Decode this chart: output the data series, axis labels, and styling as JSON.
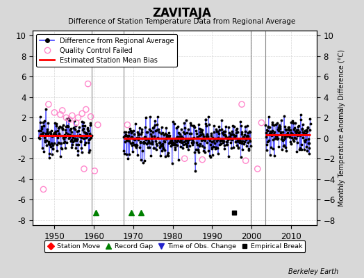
{
  "title": "ZAVITAJA",
  "subtitle": "Difference of Station Temperature Data from Regional Average",
  "ylabel_right": "Monthly Temperature Anomaly Difference (°C)",
  "xlim": [
    1944.5,
    2016.5
  ],
  "ylim": [
    -8.5,
    10.5
  ],
  "yticks": [
    -8,
    -6,
    -4,
    -2,
    0,
    2,
    4,
    6,
    8,
    10
  ],
  "xticks": [
    1950,
    1960,
    1970,
    1980,
    1990,
    2000,
    2010
  ],
  "background_color": "#d8d8d8",
  "plot_bg_color": "#ffffff",
  "grid_color": "#cccccc",
  "segments": [
    {
      "x_start": 1946.0,
      "x_end": 1959.5,
      "bias": 0.25
    },
    {
      "x_start": 1967.5,
      "x_end": 1999.8,
      "bias": -0.05
    },
    {
      "x_start": 2003.5,
      "x_end": 2015.0,
      "bias": 0.35
    }
  ],
  "vertical_lines": [
    1959.5,
    1967.5,
    1999.8,
    2003.5
  ],
  "record_gaps": [
    1960.5,
    1969.5,
    1972.0
  ],
  "empirical_breaks": [
    1995.5
  ],
  "obs_changes": [],
  "station_moves": [],
  "qc_failed_times": [
    1947.2,
    1948.5,
    1950.0,
    1951.5,
    1952.0,
    1953.0,
    1953.8,
    1954.5,
    1955.5,
    1956.0,
    1957.0,
    1957.5,
    1958.0,
    1958.5,
    1959.2,
    1960.2,
    1961.0,
    1968.5,
    1983.0,
    1987.5,
    1997.5,
    1998.5,
    2001.5,
    2002.5
  ],
  "qc_failed_values": [
    -5.0,
    3.3,
    2.5,
    2.3,
    2.7,
    2.0,
    1.8,
    2.2,
    1.5,
    2.0,
    2.4,
    -3.0,
    2.8,
    5.3,
    2.1,
    -3.2,
    1.3,
    1.3,
    -2.0,
    -2.1,
    3.3,
    -2.2,
    -3.0,
    1.5
  ],
  "record_gap_y": -7.3,
  "empirical_break_y": -7.3,
  "obs_change_y": -7.3,
  "station_move_y": -7.3,
  "berkeley_earth_text": "Berkeley Earth",
  "line_color": "#4444ff",
  "qc_color": "#ff88cc",
  "bias_color": "#ff0000",
  "vline_color": "#888888",
  "seed": 12345
}
